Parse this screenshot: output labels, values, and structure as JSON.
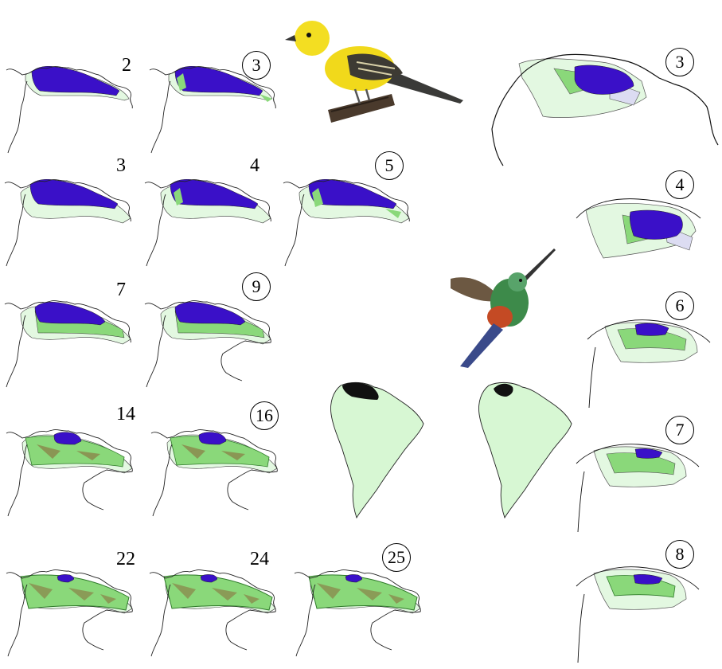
{
  "colors": {
    "core": "#3a10c8",
    "light_green": "#e3f8e1",
    "mid_green": "#8ad87a",
    "dark_green": "#2f7a2a",
    "brown": "#8a6a3a",
    "pale_blue": "#dcdcf2",
    "continent": "#d7f7d3",
    "coast": "#222222"
  },
  "panels": [
    {
      "label": "2",
      "circled": false
    },
    {
      "label": "3",
      "circled": true
    },
    {
      "label": "3",
      "circled": false
    },
    {
      "label": "4",
      "circled": false
    },
    {
      "label": "5",
      "circled": true
    },
    {
      "label": "7",
      "circled": false
    },
    {
      "label": "9",
      "circled": true
    },
    {
      "label": "14",
      "circled": false
    },
    {
      "label": "16",
      "circled": true
    },
    {
      "label": "22",
      "circled": false
    },
    {
      "label": "24",
      "circled": false
    },
    {
      "label": "25",
      "circled": true
    }
  ],
  "right_panels": [
    {
      "label": "3",
      "circled": true
    },
    {
      "label": "4",
      "circled": true
    },
    {
      "label": "6",
      "circled": true
    },
    {
      "label": "7",
      "circled": true
    },
    {
      "label": "8",
      "circled": true
    }
  ],
  "photos": {
    "yellow_bird": "oriole-photo",
    "hummingbird": "hummingbird-photo"
  }
}
